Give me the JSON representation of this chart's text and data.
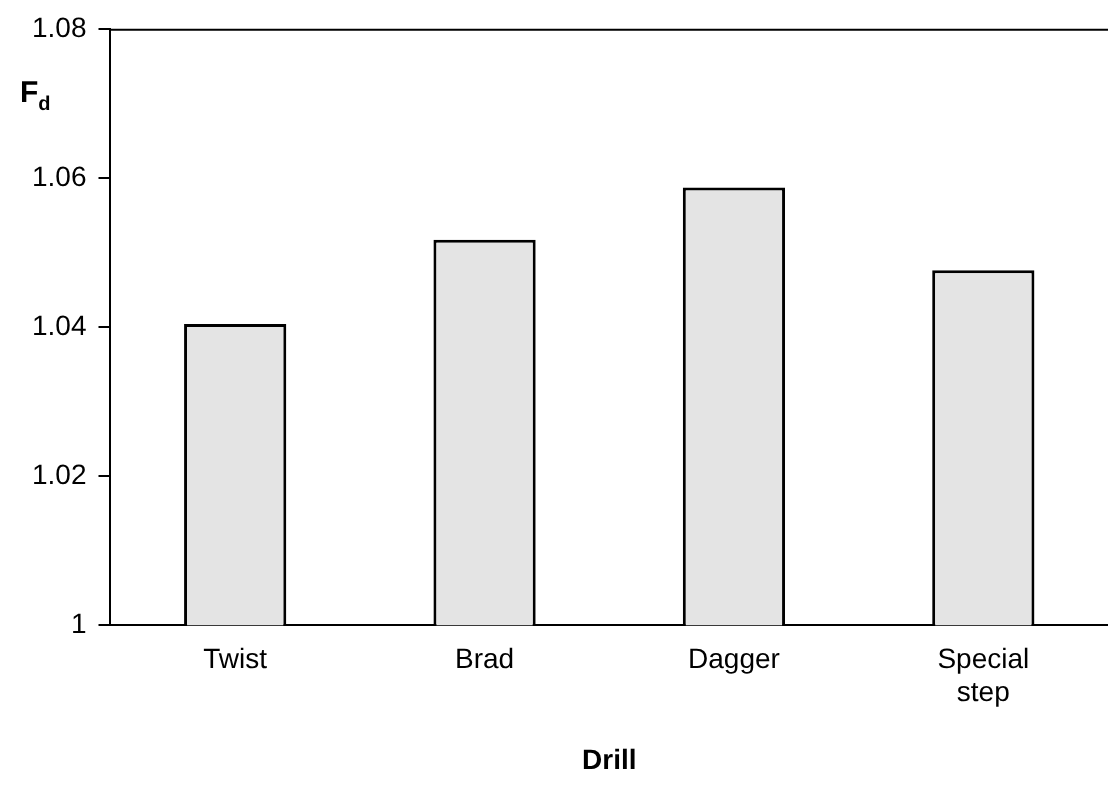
{
  "chart_data": {
    "type": "bar",
    "xlabel": "Drill",
    "ylabel": "F$_{d}$",
    "categories": [
      "Twist",
      "Brad",
      "Dagger",
      "Special step"
    ],
    "values": [
      1.0404,
      1.0517,
      1.0587,
      1.0476
    ],
    "color": "#e4e4e4",
    "ylim": [
      1,
      1.08
    ],
    "yticks": [
      1,
      1.02,
      1.04,
      1.06,
      1.08
    ],
    "grid": false,
    "legend": false
  }
}
